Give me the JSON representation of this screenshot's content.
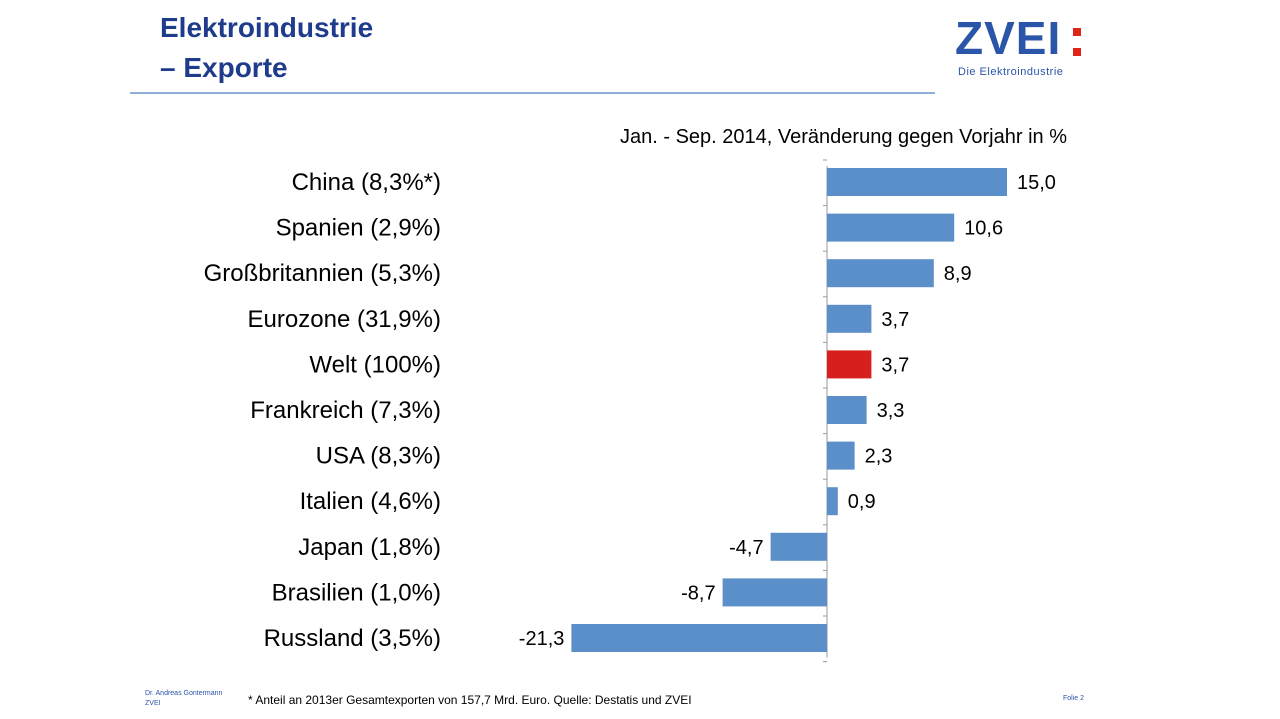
{
  "header": {
    "title_line1": "Elektroindustrie",
    "title_line2": "– Exporte"
  },
  "logo": {
    "word": "ZVEI",
    "tagline": "Die Elektroindustrie",
    "colon_color": "#e2231a",
    "brand_color": "#2a55a8"
  },
  "footer": {
    "author_line1": "Dr. Andreas Gontermann",
    "author_line2": "ZVEI",
    "footnote": "* Anteil an 2013er Gesamtexporten von 157,7 Mrd. Euro. Quelle: Destatis und ZVEI",
    "slide_label": "Folie 2"
  },
  "chart_data": {
    "type": "bar",
    "orientation": "horizontal",
    "title": "Jan. - Sep. 2014, Veränderung gegen Vorjahr in %",
    "categories": [
      "China (8,3%*)",
      "Spanien (2,9%)",
      "Großbritannien (5,3%)",
      "Eurozone (31,9%)",
      "Welt (100%)",
      "Frankreich (7,3%)",
      "USA (8,3%)",
      "Italien (4,6%)",
      "Japan (1,8%)",
      "Brasilien (1,0%)",
      "Russland (3,5%)"
    ],
    "values": [
      15.0,
      10.6,
      8.9,
      3.7,
      3.7,
      3.3,
      2.3,
      0.9,
      -4.7,
      -8.7,
      -21.3
    ],
    "value_labels": [
      "15,0",
      "10,6",
      "8,9",
      "3,7",
      "3,7",
      "3,3",
      "2,3",
      "0,9",
      "-4,7",
      "-8,7",
      "-21,3"
    ],
    "highlight_index": 4,
    "colors": {
      "bar": "#5b8fc9",
      "highlight": "#d7201e",
      "axis": "#9a9a9a"
    },
    "grid": false,
    "xlim": [
      -21.3,
      15.0
    ]
  }
}
